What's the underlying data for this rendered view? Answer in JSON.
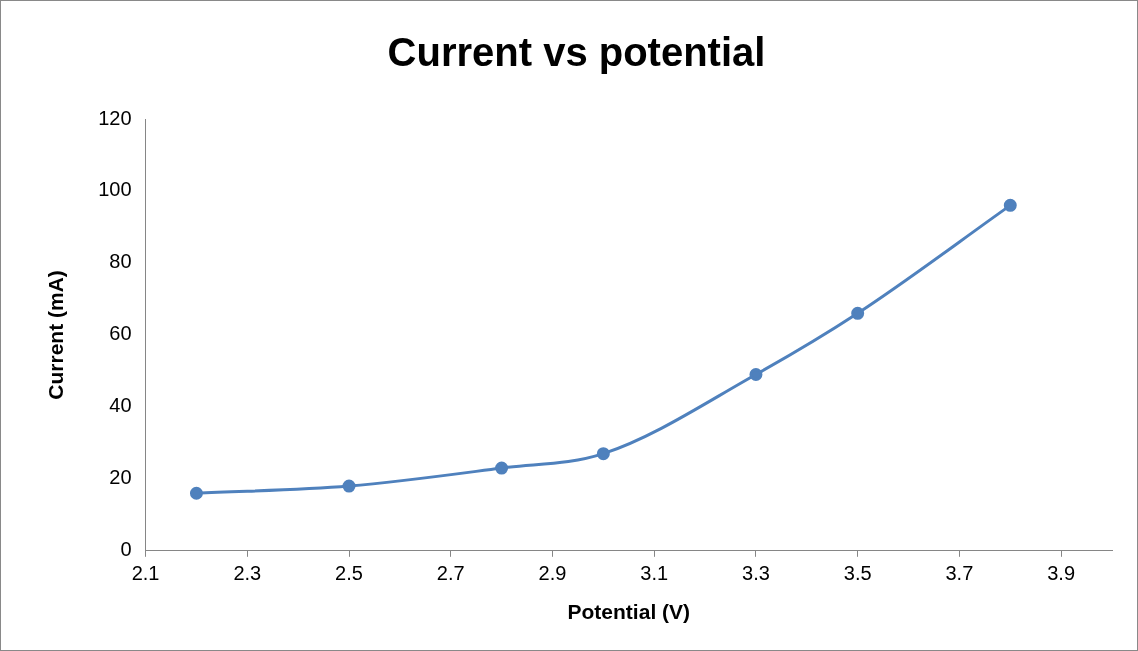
{
  "chart_data": {
    "type": "line",
    "title": "Current vs potential",
    "xlabel": "Potential (V)",
    "ylabel": "Current (mA)",
    "x": [
      2.2,
      2.5,
      2.8,
      3.0,
      3.3,
      3.5,
      3.8
    ],
    "series": [
      {
        "color": "#4f81bd",
        "values": [
          16,
          18,
          23,
          27,
          49,
          66,
          96
        ]
      }
    ],
    "xlim": [
      2.1,
      4.0
    ],
    "xticks": [
      2.1,
      2.3,
      2.5,
      2.7,
      2.9,
      3.1,
      3.3,
      3.5,
      3.7,
      3.9
    ],
    "ylim": [
      0,
      120
    ],
    "yticks": [
      0,
      20,
      40,
      60,
      80,
      100,
      120
    ],
    "grid": false,
    "legend": false,
    "marker": "circle",
    "line_style": "solid"
  }
}
